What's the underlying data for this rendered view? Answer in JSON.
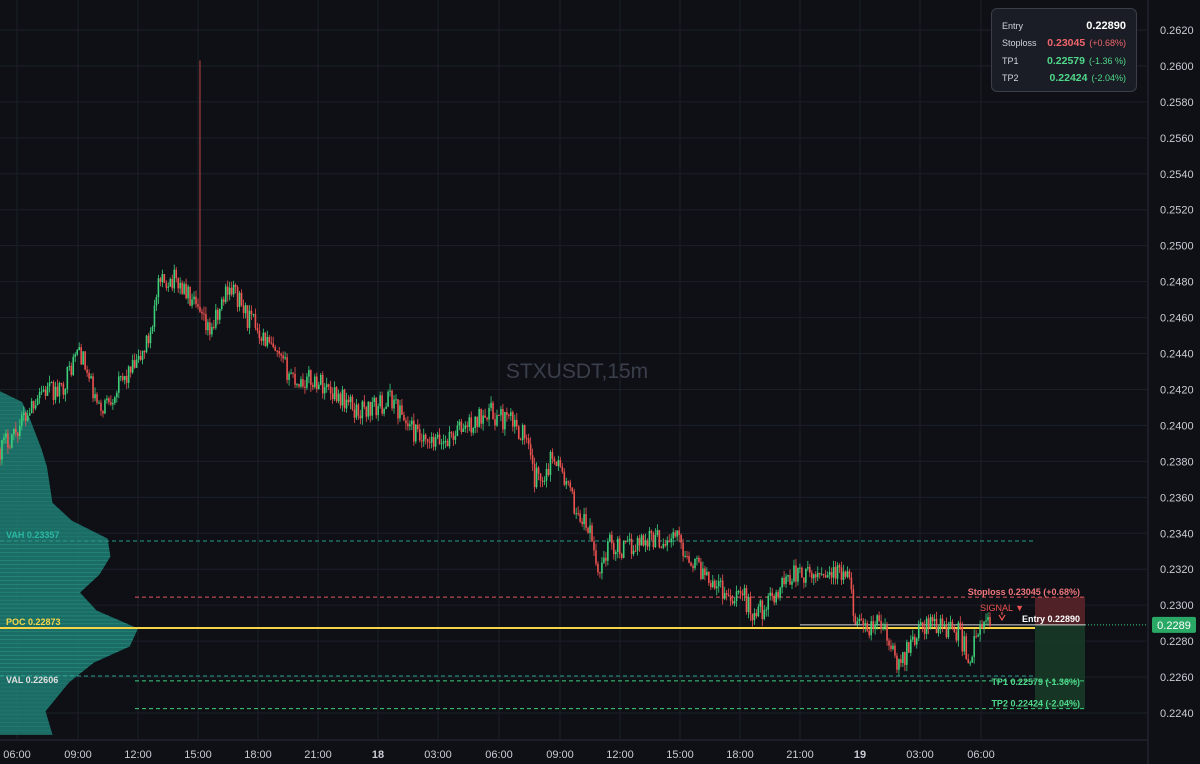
{
  "watermark": "STXUSDT,15m",
  "info_box": {
    "entry": {
      "label": "Entry",
      "value": "0.22890"
    },
    "stoploss": {
      "label": "Stoploss",
      "value": "0.23045",
      "pct": "(+0.68%)"
    },
    "tp1": {
      "label": "TP1",
      "value": "0.22579",
      "pct": "(-1.36 %)"
    },
    "tp2": {
      "label": "TP2",
      "value": "0.22424",
      "pct": "(-2.04%)"
    }
  },
  "colors": {
    "up": "#26a69a",
    "up_bright": "#3ecf7a",
    "down": "#ef5350",
    "poc": "#f5d547",
    "profile": "#1d7d72",
    "profile_light": "#2fae9b",
    "text": "#c9ccd3"
  },
  "chart_data": {
    "type": "candlestick",
    "symbol": "STXUSDT",
    "interval": "15m",
    "ylim": [
      0.2233,
      0.2631
    ],
    "y_ticks": [
      "0.2240",
      "0.2260",
      "0.2280",
      "0.2300",
      "0.2320",
      "0.2340",
      "0.2360",
      "0.2380",
      "0.2400",
      "0.2420",
      "0.2440",
      "0.2460",
      "0.2480",
      "0.2500",
      "0.2520",
      "0.2540",
      "0.2560",
      "0.2580",
      "0.2600",
      "0.2620"
    ],
    "x_ticks": [
      "06:00",
      "09:00",
      "12:00",
      "15:00",
      "18:00",
      "21:00",
      "18",
      "03:00",
      "06:00",
      "09:00",
      "12:00",
      "15:00",
      "18:00",
      "21:00",
      "19",
      "03:00",
      "06:00"
    ],
    "bold_x_ticks": [
      "18",
      "19"
    ],
    "price_label": "0.2289",
    "levels": [
      {
        "name": "VAH",
        "label": "VAH  0.23357",
        "value": 0.23357,
        "style": "dashed-teal"
      },
      {
        "name": "POC",
        "label": "POC  0.22873",
        "value": 0.22873,
        "style": "solid-yellow"
      },
      {
        "name": "VAL",
        "label": "VAL  0.22606",
        "value": 0.22606,
        "style": "dashed-teal"
      },
      {
        "name": "Stoploss",
        "label": "Stoploss 0.23045 (+0.68%)",
        "value": 0.23045,
        "style": "dashed-red"
      },
      {
        "name": "Entry",
        "label": "Entry 0.22890",
        "value": 0.2289,
        "style": "solid-white"
      },
      {
        "name": "TP1",
        "label": "TP1 0.22579 (-1.36%)",
        "value": 0.22579,
        "style": "dashed-green"
      },
      {
        "name": "TP2",
        "label": "TP2 0.22424 (-2.04%)",
        "value": 0.22424,
        "style": "dashed-green"
      }
    ],
    "signal_label": "SIGNAL ▼",
    "close_path": [
      [
        0,
        0.2387
      ],
      [
        10,
        0.24
      ],
      [
        20,
        0.242
      ],
      [
        30,
        0.2418
      ],
      [
        40,
        0.2443
      ],
      [
        45,
        0.2425
      ],
      [
        50,
        0.2408
      ],
      [
        60,
        0.2422
      ],
      [
        70,
        0.2435
      ],
      [
        75,
        0.2448
      ],
      [
        80,
        0.2476
      ],
      [
        85,
        0.2482
      ],
      [
        90,
        0.248
      ],
      [
        95,
        0.2472
      ],
      [
        100,
        0.2462
      ],
      [
        105,
        0.2452
      ],
      [
        110,
        0.246
      ],
      [
        115,
        0.2478
      ],
      [
        118,
        0.2475
      ],
      [
        125,
        0.246
      ],
      [
        130,
        0.2455
      ],
      [
        140,
        0.2437
      ],
      [
        150,
        0.2425
      ],
      [
        160,
        0.2425
      ],
      [
        170,
        0.2418
      ],
      [
        180,
        0.2408
      ],
      [
        190,
        0.241
      ],
      [
        198,
        0.2415
      ],
      [
        205,
        0.2402
      ],
      [
        215,
        0.2388
      ],
      [
        225,
        0.2392
      ],
      [
        235,
        0.24
      ],
      [
        240,
        0.24
      ],
      [
        245,
        0.241
      ],
      [
        250,
        0.2405
      ],
      [
        258,
        0.2402
      ],
      [
        265,
        0.2395
      ],
      [
        270,
        0.237
      ],
      [
        276,
        0.2375
      ],
      [
        280,
        0.2385
      ],
      [
        285,
        0.237
      ],
      [
        290,
        0.2355
      ],
      [
        298,
        0.234
      ],
      [
        302,
        0.2318
      ],
      [
        308,
        0.2335
      ],
      [
        315,
        0.233
      ],
      [
        322,
        0.2335
      ],
      [
        328,
        0.2338
      ],
      [
        335,
        0.2336
      ],
      [
        342,
        0.2338
      ],
      [
        346,
        0.233
      ],
      [
        352,
        0.2322
      ],
      [
        360,
        0.2315
      ],
      [
        368,
        0.2305
      ],
      [
        374,
        0.2308
      ],
      [
        380,
        0.2295
      ],
      [
        388,
        0.23
      ],
      [
        395,
        0.2312
      ],
      [
        400,
        0.2318
      ],
      [
        410,
        0.2315
      ],
      [
        416,
        0.232
      ],
      [
        420,
        0.2318
      ],
      [
        428,
        0.2315
      ],
      [
        432,
        0.2295
      ],
      [
        436,
        0.2283
      ],
      [
        442,
        0.229
      ],
      [
        446,
        0.2288
      ],
      [
        450,
        0.2275
      ],
      [
        454,
        0.2265
      ],
      [
        460,
        0.228
      ],
      [
        466,
        0.2288
      ],
      [
        472,
        0.229
      ],
      [
        478,
        0.2288
      ],
      [
        484,
        0.2285
      ],
      [
        490,
        0.227
      ],
      [
        493,
        0.2282
      ],
      [
        497,
        0.2288
      ],
      [
        500,
        0.229
      ]
    ],
    "candles_count": 501,
    "spike": {
      "index": 101,
      "high": 0.2603
    },
    "volume_profile": [
      [
        0.2228,
        0.38
      ],
      [
        0.2241,
        0.33
      ],
      [
        0.2257,
        0.5
      ],
      [
        0.2268,
        0.68
      ],
      [
        0.2277,
        0.94
      ],
      [
        0.2287,
        1.0
      ],
      [
        0.2297,
        0.7
      ],
      [
        0.2307,
        0.58
      ],
      [
        0.2317,
        0.72
      ],
      [
        0.2327,
        0.8
      ],
      [
        0.2337,
        0.78
      ],
      [
        0.2347,
        0.52
      ],
      [
        0.2357,
        0.38
      ],
      [
        0.2367,
        0.36
      ],
      [
        0.2377,
        0.34
      ],
      [
        0.2387,
        0.3
      ],
      [
        0.2397,
        0.25
      ],
      [
        0.2405,
        0.21
      ],
      [
        0.2413,
        0.16
      ],
      [
        0.2419,
        0.0
      ]
    ]
  }
}
